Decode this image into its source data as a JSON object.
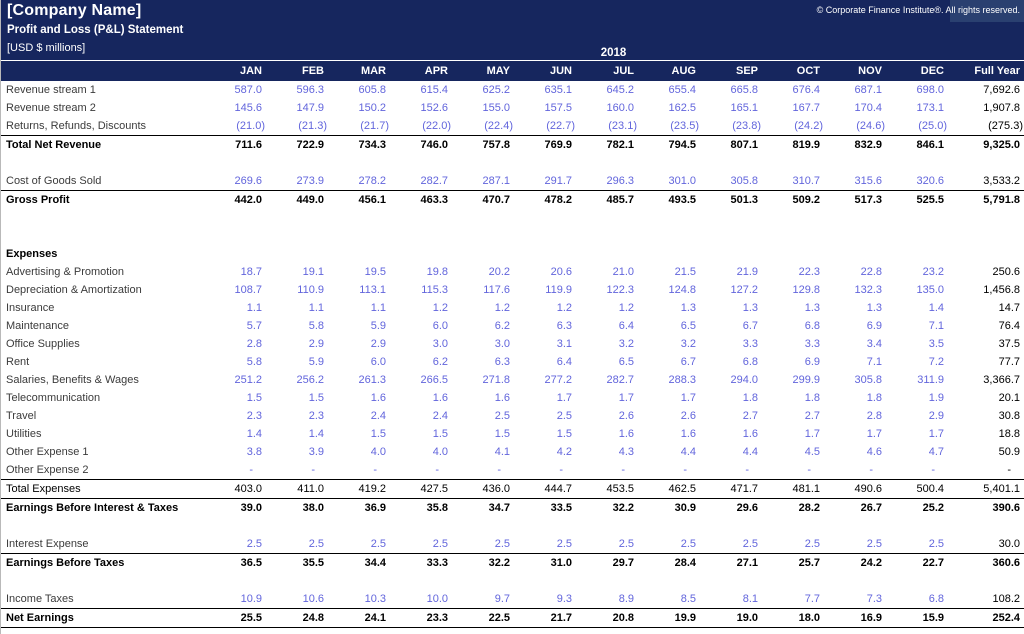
{
  "header": {
    "company": "[Company Name]",
    "subtitle": "Profit and Loss (P&L) Statement",
    "units": "[USD $ millions]",
    "year": "2018",
    "copyright": "© Corporate Finance Institute®. All rights reserved."
  },
  "colors": {
    "navy": "#16265E",
    "navy_light": "#2A4070",
    "value_blue": "#6265DC",
    "label_gray": "#3B3B3B",
    "border_black": "#000000"
  },
  "columns": [
    "JAN",
    "FEB",
    "MAR",
    "APR",
    "MAY",
    "JUN",
    "JUL",
    "AUG",
    "SEP",
    "OCT",
    "NOV",
    "DEC",
    "Full Year"
  ],
  "rows": [
    {
      "style": "data",
      "label": "Revenue stream 1",
      "values": [
        "587.0",
        "596.3",
        "605.8",
        "615.4",
        "625.2",
        "635.1",
        "645.2",
        "655.4",
        "665.8",
        "676.4",
        "687.1",
        "698.0"
      ],
      "full_year": "7,692.6"
    },
    {
      "style": "data",
      "label": "Revenue stream 2",
      "values": [
        "145.6",
        "147.9",
        "150.2",
        "152.6",
        "155.0",
        "157.5",
        "160.0",
        "162.5",
        "165.1",
        "167.7",
        "170.4",
        "173.1"
      ],
      "full_year": "1,907.8"
    },
    {
      "style": "data",
      "label": "Returns, Refunds, Discounts",
      "values": [
        "(21.0)",
        "(21.3)",
        "(21.7)",
        "(22.0)",
        "(22.4)",
        "(22.7)",
        "(23.1)",
        "(23.5)",
        "(23.8)",
        "(24.2)",
        "(24.6)",
        "(25.0)"
      ],
      "full_year": "(275.3)"
    },
    {
      "style": "total",
      "borders": "top",
      "label": "Total Net Revenue",
      "values": [
        "711.6",
        "722.9",
        "734.3",
        "746.0",
        "757.8",
        "769.9",
        "782.1",
        "794.5",
        "807.1",
        "819.9",
        "832.9",
        "846.1"
      ],
      "full_year": "9,325.0"
    },
    {
      "style": "blank"
    },
    {
      "style": "data",
      "label": "Cost of Goods Sold",
      "values": [
        "269.6",
        "273.9",
        "278.2",
        "282.7",
        "287.1",
        "291.7",
        "296.3",
        "301.0",
        "305.8",
        "310.7",
        "315.6",
        "320.6"
      ],
      "full_year": "3,533.2"
    },
    {
      "style": "total",
      "borders": "top",
      "label": "Gross Profit",
      "values": [
        "442.0",
        "449.0",
        "456.1",
        "463.3",
        "470.7",
        "478.2",
        "485.7",
        "493.5",
        "501.3",
        "509.2",
        "517.3",
        "525.5"
      ],
      "full_year": "5,791.8"
    },
    {
      "style": "blank"
    },
    {
      "style": "blank"
    },
    {
      "style": "section",
      "label": "Expenses"
    },
    {
      "style": "data",
      "label": "Advertising & Promotion",
      "values": [
        "18.7",
        "19.1",
        "19.5",
        "19.8",
        "20.2",
        "20.6",
        "21.0",
        "21.5",
        "21.9",
        "22.3",
        "22.8",
        "23.2"
      ],
      "full_year": "250.6"
    },
    {
      "style": "data",
      "label": "Depreciation & Amortization",
      "values": [
        "108.7",
        "110.9",
        "113.1",
        "115.3",
        "117.6",
        "119.9",
        "122.3",
        "124.8",
        "127.2",
        "129.8",
        "132.3",
        "135.0"
      ],
      "full_year": "1,456.8"
    },
    {
      "style": "data",
      "label": "Insurance",
      "values": [
        "1.1",
        "1.1",
        "1.1",
        "1.2",
        "1.2",
        "1.2",
        "1.2",
        "1.3",
        "1.3",
        "1.3",
        "1.3",
        "1.4"
      ],
      "full_year": "14.7"
    },
    {
      "style": "data",
      "label": "Maintenance",
      "values": [
        "5.7",
        "5.8",
        "5.9",
        "6.0",
        "6.2",
        "6.3",
        "6.4",
        "6.5",
        "6.7",
        "6.8",
        "6.9",
        "7.1"
      ],
      "full_year": "76.4"
    },
    {
      "style": "data",
      "label": "Office Supplies",
      "values": [
        "2.8",
        "2.9",
        "2.9",
        "3.0",
        "3.0",
        "3.1",
        "3.2",
        "3.2",
        "3.3",
        "3.3",
        "3.4",
        "3.5"
      ],
      "full_year": "37.5"
    },
    {
      "style": "data",
      "label": "Rent",
      "values": [
        "5.8",
        "5.9",
        "6.0",
        "6.2",
        "6.3",
        "6.4",
        "6.5",
        "6.7",
        "6.8",
        "6.9",
        "7.1",
        "7.2"
      ],
      "full_year": "77.7"
    },
    {
      "style": "data",
      "label": "Salaries, Benefits & Wages",
      "values": [
        "251.2",
        "256.2",
        "261.3",
        "266.5",
        "271.8",
        "277.2",
        "282.7",
        "288.3",
        "294.0",
        "299.9",
        "305.8",
        "311.9"
      ],
      "full_year": "3,366.7"
    },
    {
      "style": "data",
      "label": "Telecommunication",
      "values": [
        "1.5",
        "1.5",
        "1.6",
        "1.6",
        "1.6",
        "1.7",
        "1.7",
        "1.7",
        "1.8",
        "1.8",
        "1.8",
        "1.9"
      ],
      "full_year": "20.1"
    },
    {
      "style": "data",
      "label": "Travel",
      "values": [
        "2.3",
        "2.3",
        "2.4",
        "2.4",
        "2.5",
        "2.5",
        "2.6",
        "2.6",
        "2.7",
        "2.7",
        "2.8",
        "2.9"
      ],
      "full_year": "30.8"
    },
    {
      "style": "data",
      "label": "Utilities",
      "values": [
        "1.4",
        "1.4",
        "1.5",
        "1.5",
        "1.5",
        "1.5",
        "1.6",
        "1.6",
        "1.6",
        "1.7",
        "1.7",
        "1.7"
      ],
      "full_year": "18.8"
    },
    {
      "style": "data",
      "label": "Other Expense 1",
      "values": [
        "3.8",
        "3.9",
        "4.0",
        "4.0",
        "4.1",
        "4.2",
        "4.3",
        "4.4",
        "4.4",
        "4.5",
        "4.6",
        "4.7"
      ],
      "full_year": "50.9"
    },
    {
      "style": "data",
      "label": "Other Expense 2",
      "values": [
        "-",
        "-",
        "-",
        "-",
        "-",
        "-",
        "-",
        "-",
        "-",
        "-",
        "-",
        "-"
      ],
      "full_year": "-"
    },
    {
      "style": "subtotal",
      "borders": "top-bottom",
      "label": "Total Expenses",
      "values": [
        "403.0",
        "411.0",
        "419.2",
        "427.5",
        "436.0",
        "444.7",
        "453.5",
        "462.5",
        "471.7",
        "481.1",
        "490.6",
        "500.4"
      ],
      "full_year": "5,401.1"
    },
    {
      "style": "total",
      "label": "Earnings Before Interest & Taxes",
      "values": [
        "39.0",
        "38.0",
        "36.9",
        "35.8",
        "34.7",
        "33.5",
        "32.2",
        "30.9",
        "29.6",
        "28.2",
        "26.7",
        "25.2"
      ],
      "full_year": "390.6"
    },
    {
      "style": "blank"
    },
    {
      "style": "data",
      "label": "Interest Expense",
      "values": [
        "2.5",
        "2.5",
        "2.5",
        "2.5",
        "2.5",
        "2.5",
        "2.5",
        "2.5",
        "2.5",
        "2.5",
        "2.5",
        "2.5"
      ],
      "full_year": "30.0"
    },
    {
      "style": "total",
      "borders": "top",
      "label": "Earnings Before Taxes",
      "values": [
        "36.5",
        "35.5",
        "34.4",
        "33.3",
        "32.2",
        "31.0",
        "29.7",
        "28.4",
        "27.1",
        "25.7",
        "24.2",
        "22.7"
      ],
      "full_year": "360.6"
    },
    {
      "style": "blank"
    },
    {
      "style": "data",
      "label": "Income Taxes",
      "values": [
        "10.9",
        "10.6",
        "10.3",
        "10.0",
        "9.7",
        "9.3",
        "8.9",
        "8.5",
        "8.1",
        "7.7",
        "7.3",
        "6.8"
      ],
      "full_year": "108.2"
    },
    {
      "style": "total",
      "borders": "top-bottom",
      "label": "Net Earnings",
      "values": [
        "25.5",
        "24.8",
        "24.1",
        "23.3",
        "22.5",
        "21.7",
        "20.8",
        "19.9",
        "19.0",
        "18.0",
        "16.9",
        "15.9"
      ],
      "full_year": "252.4"
    }
  ]
}
